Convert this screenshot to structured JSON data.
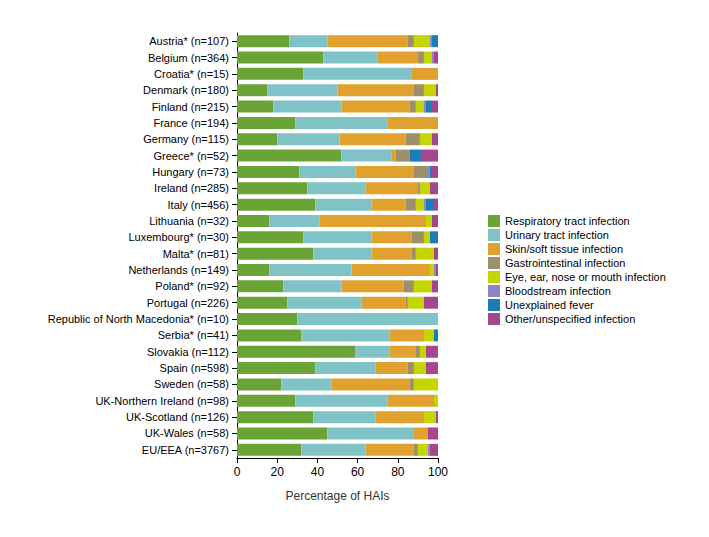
{
  "chart_data": {
    "type": "bar",
    "orientation": "horizontal",
    "stacked": true,
    "x_label": "Percentage of HAIs",
    "categories": [
      "Austria* (n=107)",
      "Belgium (n=364)",
      "Croatia* (n=15)",
      "Denmark (n=180)",
      "Finland (n=215)",
      "France (n=194)",
      "Germany (n=115)",
      "Greece* (n=52)",
      "Hungary (n=73)",
      "Ireland (n=285)",
      "Italy (n=456)",
      "Lithuania (n=32)",
      "Luxembourg* (n=30)",
      "Malta* (n=81)",
      "Netherlands (n=149)",
      "Poland* (n=92)",
      "Portugal (n=226)",
      "Republic of North Macedonia* (n=10)",
      "Serbia* (n=41)",
      "Slovakia (n=112)",
      "Spain (n=598)",
      "Sweden (n=58)",
      "UK-Northern Ireland (n=98)",
      "UK-Scotland (n=126)",
      "UK-Wales (n=58)",
      "EU/EEA (n=3767)"
    ],
    "series": [
      {
        "name": "Respiratory tract infection",
        "color": "#6aa436",
        "values": [
          26,
          43,
          33,
          15,
          18,
          29,
          20,
          52,
          31,
          35,
          39,
          16,
          33,
          38,
          16,
          23,
          25,
          30,
          32,
          59,
          39,
          22,
          29,
          38,
          45,
          32
        ]
      },
      {
        "name": "Urinary tract infection",
        "color": "#7fc3c7",
        "values": [
          19,
          27,
          54,
          35,
          34,
          46,
          31,
          25,
          28,
          29,
          28,
          25,
          34,
          29,
          41,
          29,
          37,
          70,
          44,
          17,
          30,
          25,
          46,
          31,
          43,
          32
        ]
      },
      {
        "name": "Skin/soft tissue infection",
        "color": "#e0a12e",
        "values": [
          40,
          20,
          13,
          38,
          34,
          25,
          33,
          2,
          29,
          26,
          17,
          53,
          20,
          20,
          39,
          31,
          22,
          0,
          17,
          13,
          16,
          39,
          23,
          24,
          7,
          24
        ]
      },
      {
        "name": "Gastrointestinal infection",
        "color": "#9c8f6a",
        "values": [
          3,
          3,
          0,
          5,
          3,
          0,
          7,
          7,
          7,
          1,
          5,
          0,
          6,
          2,
          0,
          5,
          1,
          0,
          0,
          2,
          3,
          2,
          0,
          0,
          0,
          2
        ]
      },
      {
        "name": "Eye, ear, nose or mouth infection",
        "color": "#c5d500",
        "values": [
          8,
          4,
          0,
          6,
          4,
          0,
          6,
          0,
          0,
          5,
          4,
          3,
          3,
          9,
          2,
          9,
          8,
          0,
          5,
          3,
          6,
          12,
          2,
          6,
          0,
          5
        ]
      },
      {
        "name": "Bloodstream infection",
        "color": "#8b87c4",
        "values": [
          1,
          1,
          0,
          0,
          1,
          0,
          0,
          0,
          1,
          0,
          1,
          0,
          0,
          0,
          1,
          0,
          0,
          0,
          0,
          0,
          0,
          0,
          0,
          0,
          0,
          1
        ]
      },
      {
        "name": "Unexplained fever",
        "color": "#1a7db5",
        "values": [
          3,
          0,
          0,
          0,
          3,
          0,
          0,
          6,
          1,
          0,
          4,
          0,
          4,
          0,
          0,
          0,
          0,
          0,
          2,
          0,
          0,
          0,
          0,
          0,
          0,
          0
        ]
      },
      {
        "name": "Other/unspecified infection",
        "color": "#a6478e",
        "values": [
          0,
          2,
          0,
          1,
          3,
          0,
          3,
          8,
          3,
          4,
          2,
          3,
          0,
          2,
          1,
          3,
          7,
          0,
          0,
          6,
          6,
          0,
          0,
          1,
          5,
          4
        ]
      }
    ],
    "xlim": [
      0,
      100
    ],
    "xticks": [
      0,
      20,
      40,
      60,
      80,
      100
    ],
    "grid": false,
    "legend": "right"
  }
}
